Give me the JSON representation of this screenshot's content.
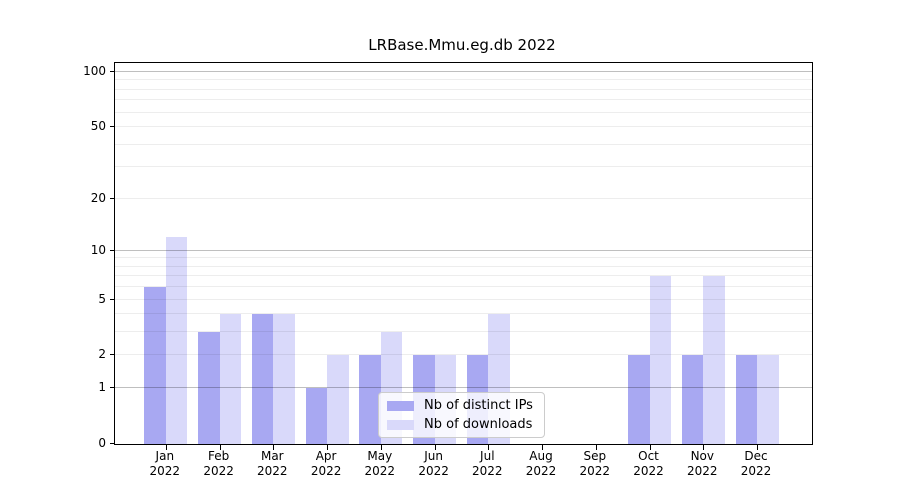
{
  "title": "LRBase.Mmu.eg.db 2022",
  "legend": {
    "items": [
      {
        "label": "Nb of distinct IPs",
        "swatch": "ips-swatch"
      },
      {
        "label": "Nb of downloads",
        "swatch": "downloads-swatch"
      }
    ]
  },
  "chart_data": {
    "type": "bar",
    "title": "LRBase.Mmu.eg.db 2022",
    "categories": [
      "Jan",
      "Feb",
      "Mar",
      "Apr",
      "May",
      "Jun",
      "Jul",
      "Aug",
      "Sep",
      "Oct",
      "Nov",
      "Dec"
    ],
    "category_year": "2022",
    "series": [
      {
        "name": "Nb of distinct IPs",
        "color": "#a8a8f2",
        "values": [
          6,
          3,
          4,
          1,
          2,
          2,
          2,
          0,
          0,
          2,
          2,
          2
        ]
      },
      {
        "name": "Nb of downloads",
        "color": "#d9d9fa",
        "values": [
          12,
          4,
          4,
          2,
          3,
          2,
          4,
          0,
          0,
          7,
          7,
          2
        ]
      }
    ],
    "xlabel": "",
    "ylabel": "",
    "yscale": "log1p",
    "y_tick_values": [
      0,
      1,
      2,
      5,
      10,
      20,
      50,
      100
    ],
    "y_major_gridlines": [
      1,
      10,
      100
    ],
    "y_minor_gridlines": [
      2,
      3,
      4,
      5,
      6,
      7,
      8,
      9,
      20,
      30,
      40,
      50,
      60,
      70,
      80,
      90
    ],
    "ylim": [
      0,
      113
    ],
    "grid": true,
    "legend_position": "lower center",
    "bar_colors": {
      "distinct_ips": "#a8a8f2",
      "downloads": "#d9d9fa"
    }
  }
}
